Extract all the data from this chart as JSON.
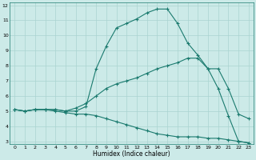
{
  "xlabel": "Humidex (Indice chaleur)",
  "bg_color": "#cceae8",
  "line_color": "#1a7a6e",
  "grid_color": "#aad4d0",
  "xlim": [
    -0.5,
    23.5
  ],
  "ylim": [
    2.8,
    12.2
  ],
  "xticks": [
    0,
    1,
    2,
    3,
    4,
    5,
    6,
    7,
    8,
    9,
    10,
    11,
    12,
    13,
    14,
    15,
    16,
    17,
    18,
    19,
    20,
    21,
    22,
    23
  ],
  "yticks": [
    3,
    4,
    5,
    6,
    7,
    8,
    9,
    10,
    11,
    12
  ],
  "line1_x": [
    0,
    1,
    2,
    3,
    4,
    5,
    6,
    7,
    8,
    9,
    10,
    11,
    12,
    13,
    14,
    15,
    16,
    17,
    18,
    19,
    20,
    21,
    22,
    23
  ],
  "line1_y": [
    5.1,
    5.0,
    5.1,
    5.1,
    5.1,
    5.0,
    5.0,
    5.3,
    7.8,
    9.3,
    10.5,
    10.8,
    11.1,
    11.5,
    11.75,
    11.75,
    10.8,
    9.5,
    8.7,
    7.8,
    6.5,
    4.7,
    3.0,
    2.9
  ],
  "line2_x": [
    0,
    1,
    2,
    3,
    4,
    5,
    6,
    7,
    8,
    9,
    10,
    11,
    12,
    13,
    14,
    15,
    16,
    17,
    18,
    19,
    20,
    21,
    22,
    23
  ],
  "line2_y": [
    5.1,
    5.0,
    5.1,
    5.1,
    5.1,
    5.0,
    5.2,
    5.5,
    6.0,
    6.5,
    6.8,
    7.0,
    7.2,
    7.5,
    7.8,
    8.0,
    8.2,
    8.5,
    8.5,
    7.8,
    7.8,
    6.5,
    4.8,
    4.5
  ],
  "line3_x": [
    0,
    1,
    2,
    3,
    4,
    5,
    6,
    7,
    8,
    9,
    10,
    11,
    12,
    13,
    14,
    15,
    16,
    17,
    18,
    19,
    20,
    21,
    22,
    23
  ],
  "line3_y": [
    5.1,
    5.0,
    5.1,
    5.1,
    5.0,
    4.9,
    4.8,
    4.8,
    4.7,
    4.5,
    4.3,
    4.1,
    3.9,
    3.7,
    3.5,
    3.4,
    3.3,
    3.3,
    3.3,
    3.2,
    3.2,
    3.1,
    3.0,
    2.9
  ]
}
